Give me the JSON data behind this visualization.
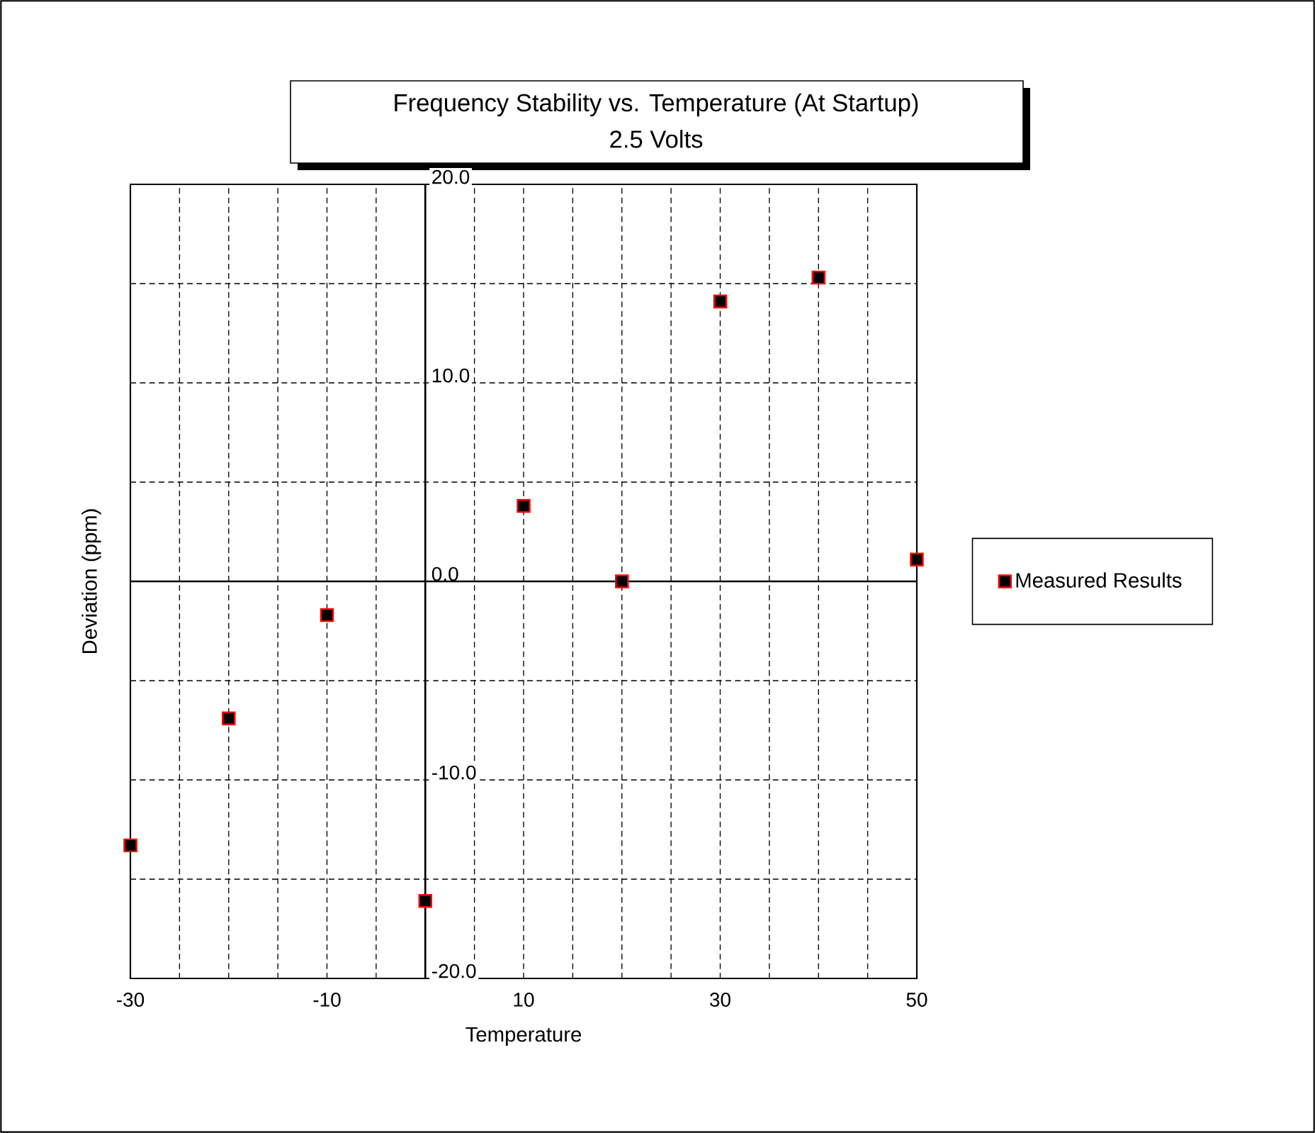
{
  "chart_data": {
    "type": "scatter",
    "title": "Frequency Stability vs. Temperature (At Startup)",
    "subtitle": "2.5 Volts",
    "xlabel": "Temperature",
    "ylabel": "Deviation (ppm)",
    "x": [
      -30,
      -20,
      -10,
      0,
      10,
      20,
      30,
      40,
      50
    ],
    "series": [
      {
        "name": "Measured Results",
        "color": "#000000",
        "values": [
          -13.3,
          -6.9,
          -1.7,
          -16.1,
          3.8,
          0.0,
          14.1,
          15.3,
          1.1
        ]
      }
    ],
    "xlim": [
      -30,
      50
    ],
    "ylim": [
      -20,
      20
    ],
    "xticks": [
      -30,
      {
        "value": -25,
        "label": null
      },
      {
        "value": -20,
        "label": null
      },
      {
        "value": -15,
        "label": null
      },
      -10,
      {
        "value": -5,
        "label": null
      },
      {
        "value": 0,
        "label": null
      },
      {
        "value": 5,
        "label": null
      },
      10,
      {
        "value": 15,
        "label": null
      },
      {
        "value": 20,
        "label": null
      },
      {
        "value": 25,
        "label": null
      },
      30,
      {
        "value": 35,
        "label": null
      },
      {
        "value": 40,
        "label": null
      },
      {
        "value": 45,
        "label": null
      },
      50
    ],
    "yticks": [
      {
        "value": -20,
        "label": "-20.0"
      },
      {
        "value": -15,
        "label": null
      },
      {
        "value": -10,
        "label": "-10.0"
      },
      {
        "value": -5,
        "label": null
      },
      {
        "value": 0,
        "label": "0.0"
      },
      {
        "value": 5,
        "label": null
      },
      {
        "value": 10,
        "label": "10.0"
      },
      {
        "value": 15,
        "label": null
      },
      {
        "value": 20,
        "label": "20.0"
      }
    ],
    "grid": true,
    "legend": "right",
    "marker": "square"
  }
}
